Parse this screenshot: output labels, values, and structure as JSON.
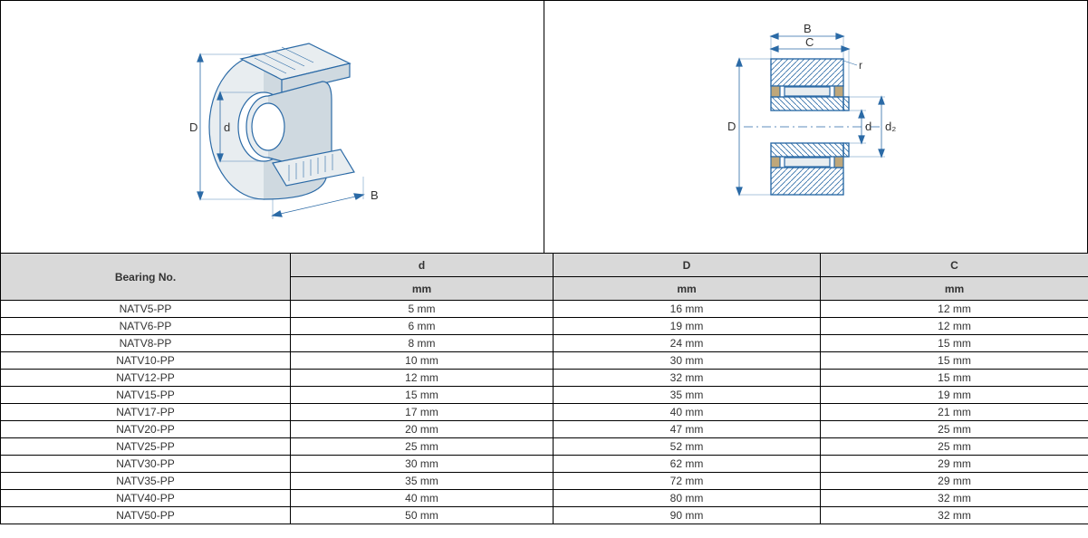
{
  "colors": {
    "line": "#2b6aa6",
    "fill_light": "#cfd9e0",
    "fill_body": "#e8edf0",
    "hatch": "#2b6aa6",
    "header_bg": "#d9d9d9",
    "border": "#000000",
    "text": "#333333"
  },
  "diagram_left": {
    "labels": {
      "D": "D",
      "d": "d",
      "B": "B"
    }
  },
  "diagram_right": {
    "labels": {
      "D": "D",
      "d": "d",
      "d2": "d₂",
      "B": "B",
      "C": "C",
      "r": "r"
    }
  },
  "table": {
    "header_col0": "Bearing No.",
    "columns": [
      "d",
      "D",
      "C"
    ],
    "unit": "mm",
    "rows": [
      {
        "no": "NATV5-PP",
        "d": "5 mm",
        "D": "16 mm",
        "C": "12 mm"
      },
      {
        "no": "NATV6-PP",
        "d": "6 mm",
        "D": "19 mm",
        "C": "12 mm"
      },
      {
        "no": "NATV8-PP",
        "d": "8 mm",
        "D": "24 mm",
        "C": "15 mm"
      },
      {
        "no": "NATV10-PP",
        "d": "10 mm",
        "D": "30 mm",
        "C": "15 mm"
      },
      {
        "no": "NATV12-PP",
        "d": "12 mm",
        "D": "32 mm",
        "C": "15 mm"
      },
      {
        "no": "NATV15-PP",
        "d": "15 mm",
        "D": "35 mm",
        "C": "19 mm"
      },
      {
        "no": "NATV17-PP",
        "d": "17 mm",
        "D": "40 mm",
        "C": "21 mm"
      },
      {
        "no": "NATV20-PP",
        "d": "20 mm",
        "D": "47 mm",
        "C": "25 mm"
      },
      {
        "no": "NATV25-PP",
        "d": "25 mm",
        "D": "52 mm",
        "C": "25 mm"
      },
      {
        "no": "NATV30-PP",
        "d": "30 mm",
        "D": "62 mm",
        "C": "29 mm"
      },
      {
        "no": "NATV35-PP",
        "d": "35 mm",
        "D": "72 mm",
        "C": "29 mm"
      },
      {
        "no": "NATV40-PP",
        "d": "40 mm",
        "D": "80 mm",
        "C": "32 mm"
      },
      {
        "no": "NATV50-PP",
        "d": "50 mm",
        "D": "90 mm",
        "C": "32 mm"
      }
    ]
  }
}
